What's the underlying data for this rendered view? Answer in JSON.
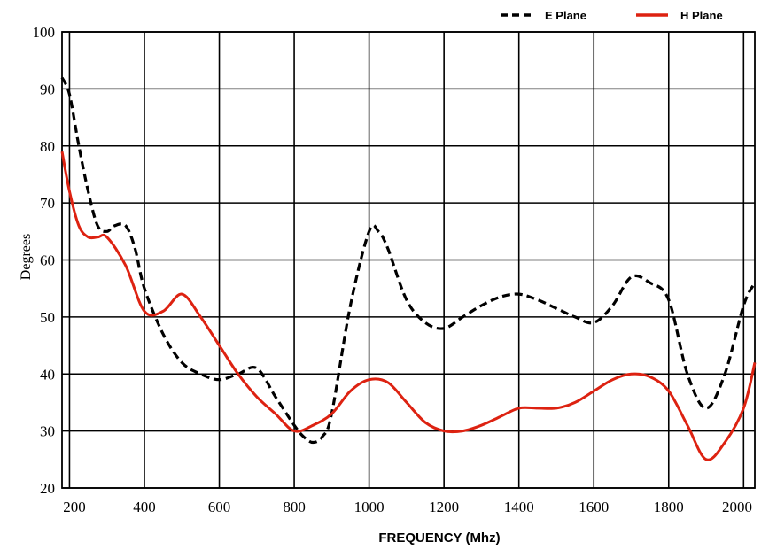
{
  "chart_data": {
    "type": "line",
    "title": "",
    "xlabel": "FREQUENCY  (Mhz)",
    "ylabel": "Degrees",
    "xlim": [
      180,
      2030
    ],
    "ylim": [
      20,
      100
    ],
    "xticks": [
      200,
      400,
      600,
      800,
      1000,
      1200,
      1400,
      1600,
      1800,
      2000
    ],
    "yticks": [
      20,
      30,
      40,
      50,
      60,
      70,
      80,
      90,
      100
    ],
    "grid": true,
    "legend_position": "top-right",
    "series": [
      {
        "name": "E Plane",
        "style": "dashed",
        "color": "#000000",
        "x": [
          180,
          200,
          225,
          250,
          275,
          300,
          320,
          350,
          375,
          400,
          450,
          500,
          550,
          600,
          650,
          700,
          750,
          800,
          825,
          850,
          875,
          900,
          950,
          1000,
          1025,
          1050,
          1100,
          1150,
          1200,
          1250,
          1300,
          1350,
          1400,
          1450,
          1500,
          1550,
          1600,
          1650,
          1700,
          1750,
          1800,
          1850,
          1900,
          1950,
          2000,
          2030
        ],
        "y": [
          92,
          89,
          80,
          72,
          66,
          65,
          66,
          66,
          62,
          55,
          47,
          42,
          40,
          39,
          40,
          41,
          36,
          31,
          29,
          28,
          29,
          33,
          52,
          65,
          65,
          62,
          53,
          49,
          48,
          50,
          52,
          53.5,
          54,
          53,
          51.5,
          50,
          49,
          52,
          57,
          56,
          53,
          40,
          34,
          40,
          52,
          56
        ]
      },
      {
        "name": "H Plane",
        "style": "solid",
        "color": "#dd2211",
        "x": [
          180,
          200,
          225,
          250,
          275,
          300,
          350,
          400,
          450,
          500,
          550,
          600,
          650,
          700,
          750,
          800,
          850,
          900,
          950,
          1000,
          1050,
          1100,
          1150,
          1200,
          1250,
          1300,
          1350,
          1400,
          1450,
          1500,
          1550,
          1600,
          1650,
          1700,
          1750,
          1800,
          1850,
          1900,
          1950,
          2000,
          2030
        ],
        "y": [
          79,
          72,
          66,
          64,
          64,
          64,
          59,
          51,
          51,
          54,
          50,
          45,
          40,
          36,
          33,
          30,
          31,
          33,
          37,
          39,
          38.5,
          35,
          31.5,
          30,
          30,
          31,
          32.5,
          34,
          34,
          34,
          35,
          37,
          39,
          40,
          39.5,
          37,
          31,
          25,
          28,
          34,
          42
        ]
      }
    ]
  }
}
